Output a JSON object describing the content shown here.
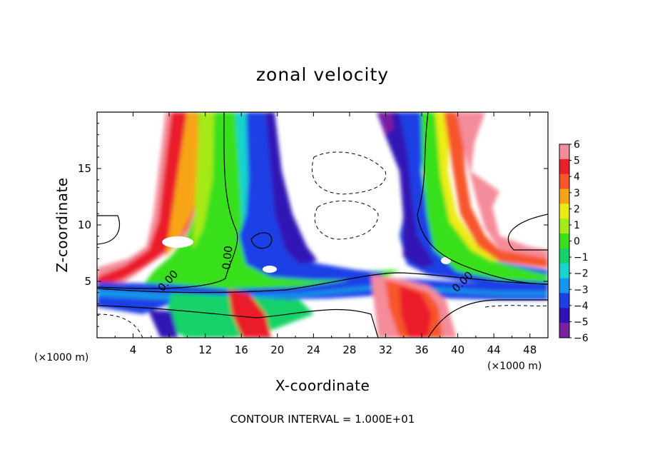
{
  "chart_data": {
    "type": "heatmap",
    "title": "zonal velocity",
    "xlabel": "X-coordinate",
    "ylabel": "Z-coordinate",
    "x_unit": "(×1000 m)",
    "x_unit_right": "(×1000 m)",
    "xlim": [
      0,
      50
    ],
    "ylim": [
      0,
      20
    ],
    "x_ticks": [
      "4",
      "8",
      "12",
      "16",
      "20",
      "24",
      "28",
      "32",
      "36",
      "40",
      "44",
      "48"
    ],
    "y_ticks": [
      "5",
      "10",
      "15"
    ],
    "colorbar_ticks": [
      "6",
      "5",
      "4",
      "3",
      "2",
      "1",
      "0",
      "−1",
      "−2",
      "−3",
      "−4",
      "−5",
      "−6"
    ],
    "colorbar_range": [
      -6,
      6
    ],
    "colormap": [
      "#7a1fa2",
      "#3312b5",
      "#1f3fe6",
      "#1596ea",
      "#19d3cf",
      "#17d268",
      "#39e01b",
      "#a5ea19",
      "#ecec12",
      "#f7a517",
      "#f7552a",
      "#ea1f29",
      "#f48c9a"
    ],
    "contour_labels": [
      "0.00",
      "0.00",
      "0.00"
    ],
    "contour_interval_text": "CONTOUR INTERVAL = 1.000E+01"
  }
}
